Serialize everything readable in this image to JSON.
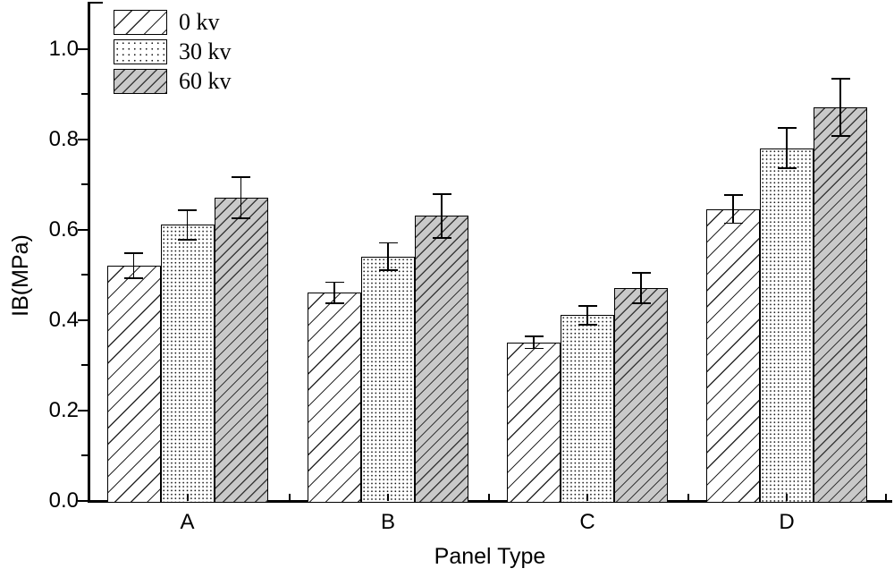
{
  "figure": {
    "background": "#ffffff"
  },
  "chart_data": {
    "type": "bar",
    "title": "",
    "xlabel": "Panel Type",
    "ylabel": "IB(MPa)",
    "categories": [
      "A",
      "B",
      "C",
      "D"
    ],
    "series": [
      {
        "name": "0 kv",
        "pattern": "hatch-white",
        "values": [
          0.52,
          0.46,
          0.35,
          0.645
        ],
        "errors": [
          0.03,
          0.025,
          0.015,
          0.033
        ]
      },
      {
        "name": "30 kv",
        "pattern": "dots-white",
        "values": [
          0.61,
          0.54,
          0.41,
          0.78
        ],
        "errors": [
          0.035,
          0.032,
          0.022,
          0.046
        ]
      },
      {
        "name": "60 kv",
        "pattern": "hatch-gray",
        "values": [
          0.67,
          0.63,
          0.47,
          0.87
        ],
        "errors": [
          0.047,
          0.05,
          0.035,
          0.065
        ]
      }
    ],
    "ylim": [
      0,
      1.11
    ],
    "ytick_minor_step": 0.1,
    "ytick_major_step": 0.2,
    "ytick_labels": [
      "0.0",
      "0.2",
      "0.4",
      "0.6",
      "0.8",
      "1.0"
    ],
    "grid": false,
    "error_bars": true,
    "legend_position": "top-left-inside",
    "colors": {
      "stroke": "#000000",
      "gray_fill": "#c9c9c9",
      "white_fill": "#ffffff",
      "background": "#ffffff"
    }
  }
}
